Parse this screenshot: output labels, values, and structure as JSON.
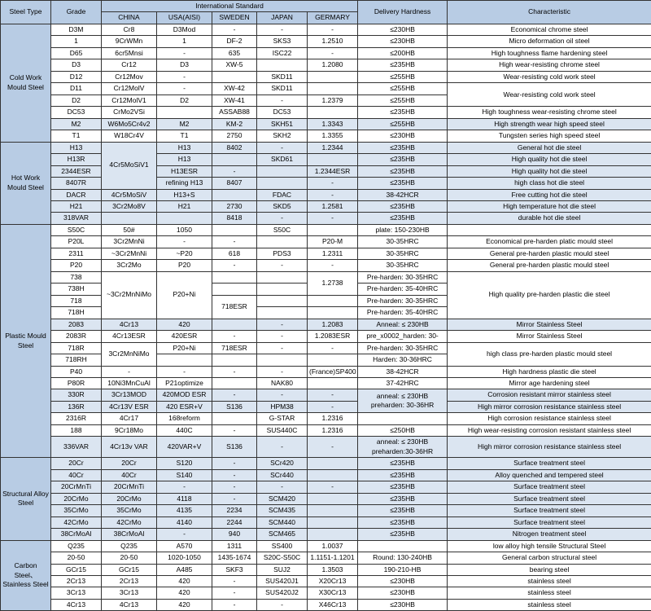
{
  "headers": {
    "steel_type": "Steel Type",
    "grade": "Grade",
    "international": "International Standard",
    "china": "CHINA",
    "usa": "USA(AISI)",
    "sweden": "SWEDEN",
    "japan": "JAPAN",
    "germany": "GERMARY",
    "hardness": "Delivery Hardness",
    "characteristic": "Characteristic"
  },
  "sections": [
    {
      "type": "Cold Work Mould Steel",
      "alt_indices": [
        8
      ],
      "rows": [
        {
          "grade": "D3M",
          "china": "Cr8",
          "usa": "D3Mod",
          "sweden": "-",
          "japan": "-",
          "germany": "-",
          "hardness": "≤230HB",
          "char": "Economical chrome steel"
        },
        {
          "grade": "1",
          "china": "9CrWMn",
          "usa": "1",
          "sweden": "DF-2",
          "japan": "SKS3",
          "germany": "1.2510",
          "hardness": "≤230HB",
          "char": "Micro deformation oil steel"
        },
        {
          "grade": "D65",
          "china": "6cr5Mnsi",
          "usa": "-",
          "sweden": "635",
          "japan": "ISC22",
          "germany": "-",
          "hardness": "≤200HB",
          "char": "High toughness flame hardening steel"
        },
        {
          "grade": "D3",
          "china": "Cr12",
          "usa": "D3",
          "sweden": "XW-5",
          "japan": "",
          "germany": "1.2080",
          "hardness": "≤235HB",
          "char": "High wear-resisting chrome steel"
        },
        {
          "grade": "D12",
          "china": "Cr12Mov",
          "usa": "-",
          "sweden": "",
          "japan": "SKD11",
          "germany": "",
          "hardness": "≤255HB",
          "char": "Wear-resisting cold work steel"
        },
        {
          "grade": "D11",
          "china": "Cr12MolV",
          "usa": "-",
          "sweden": "XW-42",
          "japan": "SKD11",
          "germany": "",
          "hardness": "≤255HB",
          "char_rowspan": 2,
          "char": "Wear-resisting cold work steel"
        },
        {
          "grade": "D2",
          "china": "Cr12MolV1",
          "usa": "D2",
          "sweden": "XW-41",
          "japan": "-",
          "germany": "1.2379",
          "hardness": "≤255HB"
        },
        {
          "grade": "DC53",
          "china": "CrMo2VSi",
          "usa": "",
          "sweden": "ASSAB88",
          "japan": "DC53",
          "germany": "",
          "hardness": "≤235HB",
          "char": "High toughness wear-resisting chrome steel",
          "char_wrap": true
        },
        {
          "grade": "M2",
          "china": "W6Mo5Cr4v2",
          "usa": "M2",
          "sweden": "KM-2",
          "japan": "SKH51",
          "germany": "1.3343",
          "hardness": "≤255HB",
          "char": "High strength wear high speed steel"
        },
        {
          "grade": "T1",
          "china": "W18Cr4V",
          "usa": "T1",
          "sweden": "2750",
          "japan": "SKH2",
          "germany": "1.3355",
          "hardness": "≤230HB",
          "char": "Tungsten series high speed steel"
        }
      ]
    },
    {
      "type": "Hot Work Mould Steel",
      "alt_indices": [
        0,
        1,
        2,
        3,
        4,
        5,
        6
      ],
      "rows": [
        {
          "grade": "H13",
          "china_rowspan": 4,
          "china": "4Cr5MoSiV1",
          "usa": "H13",
          "sweden": "8402",
          "japan": "-",
          "germany": "1.2344",
          "hardness": "≤235HB",
          "char": "General hot die steel"
        },
        {
          "grade": "H13R",
          "usa": "H13",
          "sweden": "",
          "japan": "SKD61",
          "germany": "",
          "hardness": "≤235HB",
          "char": "High quality hot die steel"
        },
        {
          "grade": "2344ESR",
          "usa": "H13ESR",
          "sweden": "-",
          "japan": "",
          "germany": "1.2344ESR",
          "hardness": "≤235HB",
          "char": "High quality hot die steel"
        },
        {
          "grade": "8407R",
          "usa": "refining H13",
          "sweden": "8407",
          "japan": "",
          "germany": "-",
          "hardness": "≤235HB",
          "char": "high class hot die steel"
        },
        {
          "grade": "DACR",
          "china": "4Cr5MoSiV",
          "usa": "H13+S",
          "sweden": "",
          "japan": "FDAC",
          "germany": "-",
          "hardness": "38-42HCR",
          "char": "Free cutting hot die steel"
        },
        {
          "grade": "H21",
          "china": "3Cr2Mo8V",
          "usa": "H21",
          "sweden": "2730",
          "japan": "SKD5",
          "germany": "1.2581",
          "hardness": "≤235HB",
          "char": "High temperature hot die steel"
        },
        {
          "grade": "318VAR",
          "china": "",
          "usa": "",
          "sweden": "8418",
          "japan": "-",
          "germany": "-",
          "hardness": "≤235HB",
          "char": "durable hot die steel"
        }
      ]
    },
    {
      "type": "Plastic Mould Steel",
      "alt_indices": [
        8,
        14,
        15,
        18
      ],
      "rows": [
        {
          "grade": "S50C",
          "china": "50#",
          "usa": "1050",
          "sweden": "",
          "japan": "S50C",
          "germany": "",
          "hardness": "plate:   150-230HB",
          "char": ""
        },
        {
          "grade": "P20L",
          "china": "3Cr2MnNi",
          "usa": "-",
          "sweden": "-",
          "japan": "",
          "germany": "P20-M",
          "hardness": "30-35HRC",
          "char": "Economical pre-harden platic mould steel"
        },
        {
          "grade": "2311",
          "china": "~3Cr2MnNi",
          "usa": "~P20",
          "sweden": "618",
          "japan": "PDS3",
          "germany": "1.2311",
          "hardness": "30-35HRC",
          "char": "General pre-harden plastic mould steel"
        },
        {
          "grade": "P20",
          "china": "3Cr2Mo",
          "usa": "P20",
          "sweden": "-",
          "japan": "-",
          "germany": "-",
          "hardness": "30-35HRC",
          "char": "General pre-harden plastic mould steel"
        },
        {
          "grade": "738",
          "china_rowspan": 4,
          "china": "~3Cr2MnNiMo",
          "usa_rowspan": 4,
          "usa": "P20+Ni",
          "sweden": "",
          "japan": "",
          "germany_rowspan": 2,
          "germany": "1.2738",
          "hardness": "Pre-harden:   30-35HRC",
          "char_rowspan": 4,
          "char": "High quality pre-harden plastic die steel"
        },
        {
          "grade": "738H",
          "sweden": "",
          "japan": "",
          "hardness": "Pre-harden:   35-40HRC"
        },
        {
          "grade": "718",
          "sweden_rowspan": 2,
          "sweden": "718ESR",
          "japan": "",
          "germany": "",
          "hardness": "Pre-harden:   30-35HRC"
        },
        {
          "grade": "718H",
          "japan": "",
          "germany": "",
          "hardness": "Pre-harden:   35-40HRC"
        },
        {
          "grade": "2083",
          "china": "4Cr13",
          "usa": "420",
          "sweden": "",
          "japan": "-",
          "germany": "1.2083",
          "hardness": "Anneal: ≤ 230HB",
          "char": "Mirror Stainless Steel"
        },
        {
          "grade": "2083R",
          "china": "4Cr13ESR",
          "usa": "420ESR",
          "sweden": "-",
          "japan": "-",
          "germany": "1.2083ESR",
          "hardness": "pre_x0002_harden:   30-",
          "char": "Mirror Stainless Steel"
        },
        {
          "grade": "718R",
          "china_rowspan": 2,
          "china": "3Cr2MnNiMo",
          "usa": "P20+Ni",
          "sweden": "718ESR",
          "japan": "-",
          "germany": "-",
          "hardness": "Pre-harden:   30-35HRC",
          "char_rowspan": 2,
          "char": "high class pre-harden plastic mould steel"
        },
        {
          "grade": "718RH",
          "usa": "",
          "sweden": "",
          "japan": "",
          "germany": "",
          "hardness": "Harden: 30-36HRC"
        },
        {
          "grade": "P40",
          "china": "-",
          "usa": "-",
          "sweden": "-",
          "japan": "-",
          "germany": "(France)SP400",
          "hardness": "38-42HCR",
          "char": "High hardness plastic die steel"
        },
        {
          "grade": "P80R",
          "china": "10Ni3MnCuAl",
          "usa": "P21optimize",
          "sweden": "",
          "japan": "NAK80",
          "germany": "",
          "hardness": "37-42HRC",
          "char": "Mirror age hardening steel"
        },
        {
          "grade": "330R",
          "china": "3Cr13MOD",
          "usa": "420MOD ESR",
          "sweden": "-",
          "japan": "-",
          "germany": "-",
          "hardness_rowspan": 2,
          "hardness": "anneal: ≤ 230HB preharden: 30-36HR",
          "hardness_wrap": true,
          "char": "Corrosion resistant mirror stainless steel"
        },
        {
          "grade": "136R",
          "china": "4Cr13V ESR",
          "usa": "420 ESR+V",
          "sweden": "S136",
          "japan": "HPM38",
          "germany": "-",
          "char": "High mirror corrosion resistance stainless steel"
        },
        {
          "grade": "2316R",
          "china": "4Cr17",
          "usa": "168reform",
          "sweden": "",
          "japan": "G-STAR",
          "germany": "1.2316",
          "hardness": "",
          "char": "High corrosion resistance stainless steel"
        },
        {
          "grade": "188",
          "china": "9Cr18Mo",
          "usa": "440C",
          "sweden": "-",
          "japan": "SUS440C",
          "germany": "1.2316",
          "hardness": "≤250HB",
          "char": "High wear-resisting corrosion resistant stainless steel"
        },
        {
          "grade": "336VAR",
          "china": "4Cr13v VAR",
          "usa": "420VAR+V",
          "sweden": "S136",
          "japan": "-",
          "germany": "-",
          "hardness": "anneal: ≤ 230HB preharden:30-36HR",
          "hardness_wrap": true,
          "char": "High mirror corrosion resistance stainless steel"
        }
      ]
    },
    {
      "type": "Structural Alloy Steel",
      "alt_indices": [
        0,
        1,
        2,
        3,
        4,
        5,
        6
      ],
      "rows": [
        {
          "grade": "20Cr",
          "china": "20Cr",
          "usa": "S120",
          "sweden": "-",
          "japan": "SCr420",
          "germany": "",
          "hardness": "≤235HB",
          "char": "Surface treatment steel"
        },
        {
          "grade": "40Cr",
          "china": "40Cr",
          "usa": "S140",
          "sweden": "-",
          "japan": "SCr440",
          "germany": "",
          "hardness": "≤235HB",
          "char": "Alloy quenched and tempered steel"
        },
        {
          "grade": "20CrMnTi",
          "china": "20CrMnTi",
          "usa": "-",
          "sweden": "-",
          "japan": "-",
          "germany": "-",
          "hardness": "≤235HB",
          "char": "Surface treatment steel"
        },
        {
          "grade": "20CrMo",
          "china": "20CrMo",
          "usa": "4118",
          "sweden": "-",
          "japan": "SCM420",
          "germany": "",
          "hardness": "≤235HB",
          "char": "Surface treatment steel"
        },
        {
          "grade": "35CrMo",
          "china": "35CrMo",
          "usa": "4135",
          "sweden": "2234",
          "japan": "SCM435",
          "germany": "",
          "hardness": "≤235HB",
          "char": "Surface treatment steel"
        },
        {
          "grade": "42CrMo",
          "china": "42CrMo",
          "usa": "4140",
          "sweden": "2244",
          "japan": "SCM440",
          "germany": "",
          "hardness": "≤235HB",
          "char": "Surface treatment steel"
        },
        {
          "grade": "38CrMoAl",
          "china": "38CrMoAl",
          "usa": "-",
          "sweden": "940",
          "japan": "SCM465",
          "germany": "",
          "hardness": "≤235HB",
          "char": "Nitrogen treatment steel"
        }
      ]
    },
    {
      "type": "Carbon Steel、Stainless Steel",
      "alt_indices": [],
      "rows": [
        {
          "grade": "Q235",
          "china": "Q235",
          "usa": "A570",
          "sweden": "1311",
          "japan": "SS400",
          "germany": "1.0037",
          "hardness": "",
          "char": "low alloy high tensile Structural Steel"
        },
        {
          "grade": "20-50",
          "china": "20-50",
          "usa": "1020-1050",
          "sweden": "1435-1674",
          "japan": "S20C-S50C",
          "germany": "1.1151-1.1201",
          "hardness": "Round: 130-240HB",
          "char": "General carbon structural steel"
        },
        {
          "grade": "GCr15",
          "china": "GCr15",
          "usa": "A485",
          "sweden": "SKF3",
          "japan": "SUJ2",
          "germany": "1.3503",
          "hardness": "190-210-HB",
          "char": "bearing steel"
        },
        {
          "grade": "2Cr13",
          "china": "2Cr13",
          "usa": "420",
          "sweden": "-",
          "japan": "SUS420J1",
          "germany": "X20Cr13",
          "hardness": "≤230HB",
          "char": "stainless steel"
        },
        {
          "grade": "3Cr13",
          "china": "3Cr13",
          "usa": "420",
          "sweden": "-",
          "japan": "SUS420J2",
          "germany": "X30Cr13",
          "hardness": "≤230HB",
          "char": "stainless steel"
        },
        {
          "grade": "4Cr13",
          "china": "4Cr13",
          "usa": "420",
          "sweden": "-",
          "japan": "-",
          "germany": "X46Cr13",
          "hardness": "≤230HB",
          "char": "stainless steel"
        }
      ]
    }
  ]
}
